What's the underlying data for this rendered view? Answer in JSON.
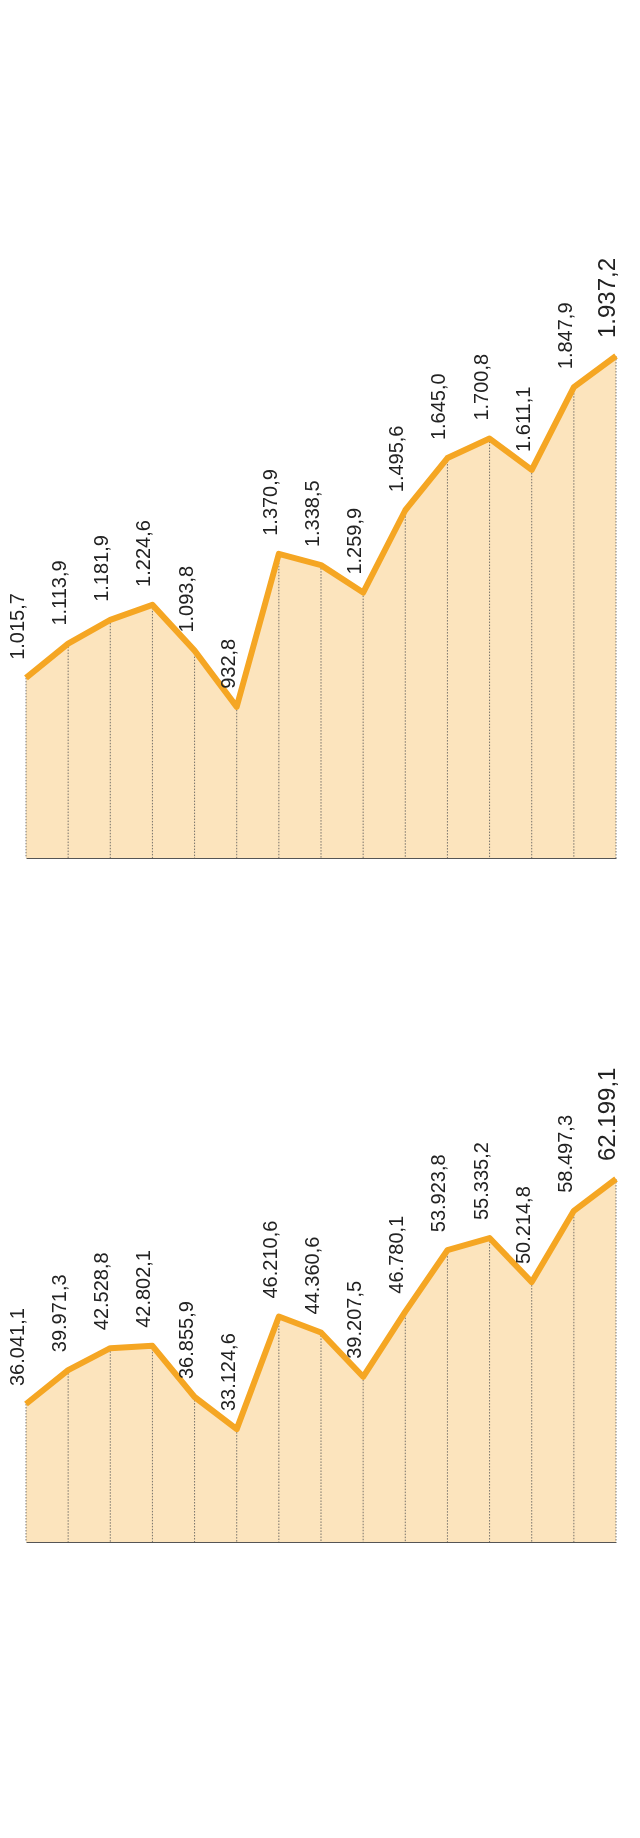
{
  "chart_data": [
    {
      "type": "area",
      "categories": [
        null,
        null,
        null,
        null,
        null,
        null,
        null,
        null,
        null,
        null,
        null,
        null,
        null,
        null,
        null
      ],
      "color": "#f5a623",
      "ylim": [
        500,
        1937.2
      ],
      "tick_labels": false,
      "grid": "x",
      "values": [
        1015.7,
        1113.9,
        1181.9,
        1224.6,
        1093.8,
        932.8,
        1370.9,
        1338.5,
        1259.9,
        1495.6,
        1645.0,
        1700.8,
        1611.1,
        1847.9,
        1937.2
      ],
      "value_labels": [
        "1.015,7",
        "1.113,9",
        "1.181,9",
        "1.224,6",
        "1.093,8",
        "932,8",
        "1.370,9",
        "1.338,5",
        "1.259,9",
        "1.495,6",
        "1.645,0",
        "1.700,8",
        "1.611,1",
        "1.847,9",
        "1.937,2"
      ]
    },
    {
      "type": "area",
      "categories": [
        null,
        null,
        null,
        null,
        null,
        null,
        null,
        null,
        null,
        null,
        null,
        null,
        null,
        null,
        null
      ],
      "color": "#f5a623",
      "ylim": [
        20000,
        62199.1
      ],
      "tick_labels": false,
      "grid": "x",
      "values": [
        36041.1,
        39971.3,
        42528.8,
        42802.1,
        36855.9,
        33124.6,
        46210.6,
        44360.6,
        39207.5,
        46780.1,
        53923.8,
        55335.2,
        50214.8,
        58497.3,
        62199.1
      ],
      "value_labels": [
        "36.041,1",
        "39.971,3",
        "42.528,8",
        "42.802,1",
        "36.855,9",
        "33.124,6",
        "46.210,6",
        "44.360,6",
        "39.207,5",
        "46.780,1",
        "53.923,8",
        "55.335,2",
        "50.214,8",
        "58.497,3",
        "62.199,1"
      ]
    }
  ]
}
